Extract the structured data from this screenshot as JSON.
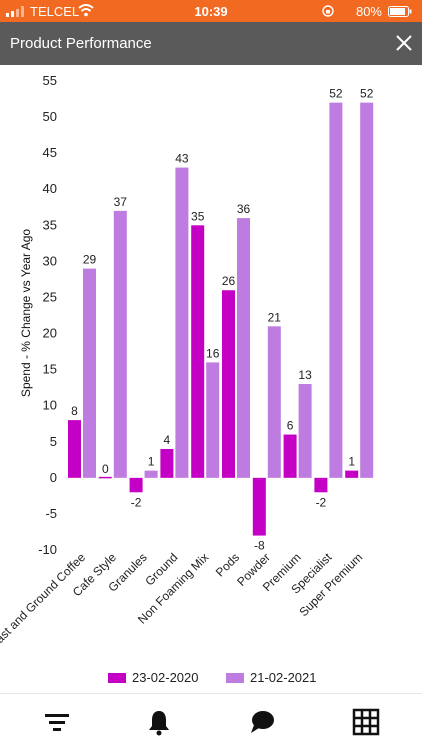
{
  "status": {
    "carrier": "TELCEL",
    "time": "10:39",
    "battery": "80%"
  },
  "header": {
    "title": "Product Performance"
  },
  "colors": {
    "series1": "#c400c4",
    "series2": "#be7be0",
    "header": "#5a5a5a",
    "status": "#f26a21"
  },
  "icons": {
    "close": "close-icon",
    "filter": "filter-icon",
    "bell": "bell-icon",
    "chat": "chat-icon",
    "grid": "grid-icon"
  },
  "chart_data": {
    "type": "bar",
    "categories": [
      "Roast and Ground Coffee",
      "Cafe Style",
      "Granules",
      "Ground",
      "Non Foaming Mix",
      "Pods",
      "Powder",
      "Premium",
      "Specialist",
      "Super Premium"
    ],
    "series": [
      {
        "name": "23-02-2020",
        "values": [
          8,
          0,
          -2,
          4,
          35,
          26,
          -8,
          6,
          -2,
          1
        ]
      },
      {
        "name": "21-02-2021",
        "values": [
          29,
          37,
          1,
          43,
          16,
          36,
          21,
          13,
          52,
          52
        ]
      }
    ],
    "ylabel": "Spend - % Change vs Year Ago",
    "ylim": [
      -10,
      55
    ],
    "yticks": [
      55,
      50,
      45,
      40,
      35,
      30,
      25,
      20,
      15,
      10,
      5,
      0,
      -5,
      -10
    ],
    "legend": "bottom",
    "grid": false
  }
}
